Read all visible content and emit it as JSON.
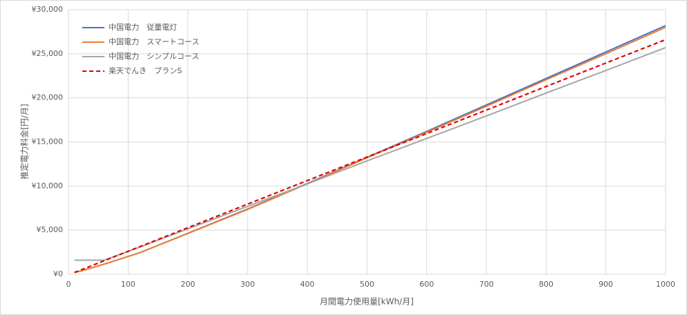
{
  "chart_data": {
    "type": "line",
    "xlabel": "月間電力使用量[kWh/月]",
    "ylabel": "推定電力料金[円/月]",
    "x": [
      10,
      20,
      60,
      120,
      300,
      400,
      500,
      600,
      700,
      800,
      900,
      1000
    ],
    "series": [
      {
        "name": "中国電力　従量電灯",
        "color": "#4472c4",
        "dash": "solid",
        "values": [
          200,
          350,
          1150,
          2450,
          7400,
          10300,
          13250,
          16200,
          19200,
          22200,
          25200,
          28200
        ]
      },
      {
        "name": "中国電力　スマートコース",
        "color": "#ed7d31",
        "dash": "solid",
        "values": [
          200,
          350,
          1150,
          2450,
          7350,
          10250,
          13200,
          16100,
          19050,
          22050,
          25000,
          28000
        ]
      },
      {
        "name": "中国電力　シンプルコース",
        "color": "#a5a5a5",
        "dash": "solid",
        "values": [
          1600,
          1600,
          1600,
          3100,
          7700,
          10250,
          12850,
          15400,
          17950,
          20550,
          23100,
          25700
        ]
      },
      {
        "name": "楽天でんき　プランS",
        "color": "#e00000",
        "dash": "dashed",
        "values": [
          200,
          470,
          1540,
          3140,
          7950,
          10620,
          13290,
          15960,
          18620,
          21290,
          23950,
          26600
        ]
      }
    ],
    "xlim": [
      0,
      1000
    ],
    "xticks": [
      0,
      100,
      200,
      300,
      400,
      500,
      600,
      700,
      800,
      900,
      1000
    ],
    "ylim": [
      0,
      30000
    ],
    "yticks": [
      {
        "value": 0,
        "label": "¥0"
      },
      {
        "value": 5000,
        "label": "¥5,000"
      },
      {
        "value": 10000,
        "label": "¥10,000"
      },
      {
        "value": 15000,
        "label": "¥15,000"
      },
      {
        "value": 20000,
        "label": "¥20,000"
      },
      {
        "value": 25000,
        "label": "¥25,000"
      },
      {
        "value": 30000,
        "label": "¥30,000"
      }
    ],
    "grid": true,
    "legend": "upper-left"
  }
}
